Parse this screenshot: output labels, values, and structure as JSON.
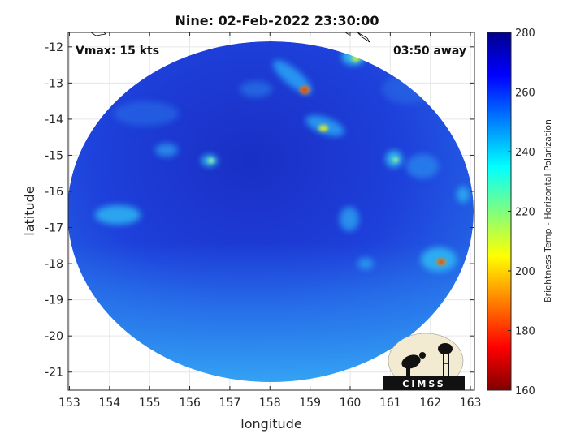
{
  "title": "Nine: 02-Feb-2022 23:30:00",
  "annotations": {
    "vmax": "Vmax: 15 kts",
    "away": "03:50 away"
  },
  "axes": {
    "xlabel": "longitude",
    "ylabel": "latitude",
    "x_ticks": [
      "153",
      "154",
      "155",
      "156",
      "157",
      "158",
      "159",
      "160",
      "161",
      "162",
      "163"
    ],
    "y_ticks": [
      "-12",
      "-13",
      "-14",
      "-15",
      "-16",
      "-17",
      "-18",
      "-19",
      "-20",
      "-21"
    ],
    "xlim": [
      152.97,
      163.1
    ],
    "ylim": [
      -21.5,
      -11.6
    ]
  },
  "colorbar": {
    "label": "Brightness Temp - Horizontal Polarization",
    "ticks": [
      "280",
      "260",
      "240",
      "220",
      "200",
      "180",
      "160"
    ],
    "range": [
      160,
      280
    ],
    "colormap": "jet"
  },
  "logo": {
    "text": "CIMSS"
  },
  "colors": {
    "background_field": "#2146e6",
    "deep_field": "#1f2fc9",
    "light_field": "#2a8ff0",
    "warm_spot": "#ff5a00"
  }
}
